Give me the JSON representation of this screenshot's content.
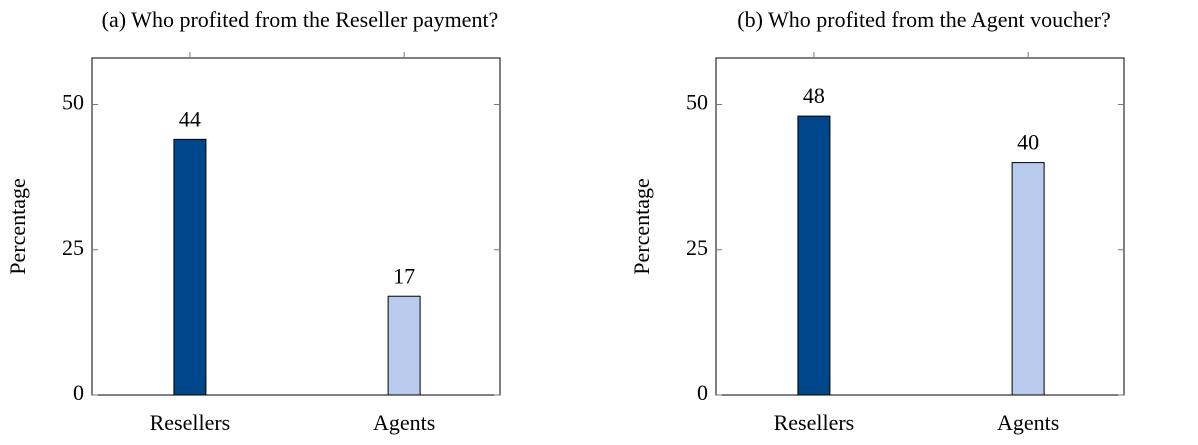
{
  "chart_data": [
    {
      "type": "bar",
      "title": "(a) Who profited from the Reseller payment?",
      "ylabel": "Percentage",
      "categories": [
        "Resellers",
        "Agents"
      ],
      "values": [
        44,
        17
      ],
      "colors": [
        "#00468b",
        "#b9cbec"
      ],
      "ylim": [
        0,
        58
      ],
      "yticks": [
        0,
        25,
        50
      ]
    },
    {
      "type": "bar",
      "title": "(b) Who profited from the Agent voucher?",
      "ylabel": "Percentage",
      "categories": [
        "Resellers",
        "Agents"
      ],
      "values": [
        48,
        40
      ],
      "colors": [
        "#00468b",
        "#b9cbec"
      ],
      "ylim": [
        0,
        58
      ],
      "yticks": [
        0,
        25,
        50
      ]
    }
  ]
}
